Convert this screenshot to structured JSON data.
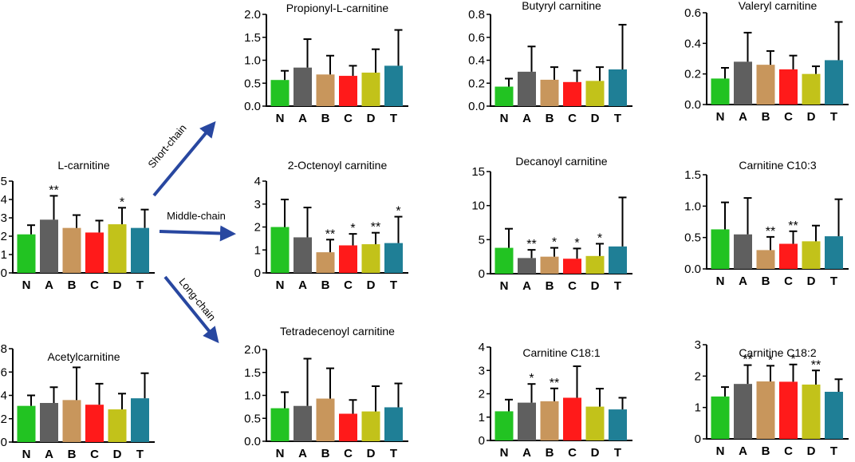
{
  "colors": {
    "N": "#22c322",
    "A": "#5f5f5f",
    "B": "#c8965c",
    "C": "#ff1a1a",
    "D": "#c2c21a",
    "T": "#1f7f96",
    "arrow": "#2847a0"
  },
  "arrows": [
    {
      "label": "Short-chain"
    },
    {
      "label": "Middle-chain"
    },
    {
      "label": "Long-chain"
    }
  ],
  "chart_data": [
    {
      "id": "l-carnitine",
      "type": "bar",
      "title": "L-carnitine",
      "categories": [
        "N",
        "A",
        "B",
        "C",
        "D",
        "T"
      ],
      "values": [
        2.1,
        2.9,
        2.45,
        2.2,
        2.65,
        2.45
      ],
      "errors": [
        0.5,
        1.3,
        0.7,
        0.65,
        0.9,
        1.0
      ],
      "sig": [
        "",
        "**",
        "",
        "",
        "*",
        ""
      ],
      "ylim": [
        0,
        5
      ],
      "yticks": [
        "0",
        "1",
        "2",
        "3",
        "4",
        "5"
      ]
    },
    {
      "id": "acetylcarnitine",
      "type": "bar",
      "title": "Acetylcarnitine",
      "categories": [
        "N",
        "A",
        "B",
        "C",
        "D",
        "T"
      ],
      "values": [
        3.1,
        3.35,
        3.6,
        3.2,
        2.8,
        3.75
      ],
      "errors": [
        0.9,
        1.35,
        2.8,
        1.8,
        1.35,
        2.15
      ],
      "sig": [
        "",
        "",
        "",
        "",
        "",
        ""
      ],
      "ylim": [
        0,
        8
      ],
      "yticks": [
        "0",
        "2",
        "4",
        "6",
        "8"
      ]
    },
    {
      "id": "propionyl",
      "type": "bar",
      "title": "Propionyl-L-carnitine",
      "categories": [
        "N",
        "A",
        "B",
        "C",
        "D",
        "T"
      ],
      "values": [
        0.57,
        0.84,
        0.69,
        0.66,
        0.73,
        0.88
      ],
      "errors": [
        0.2,
        0.62,
        0.41,
        0.22,
        0.51,
        0.78
      ],
      "sig": [
        "",
        "",
        "",
        "",
        "",
        ""
      ],
      "ylim": [
        0,
        2
      ],
      "yticks": [
        "0.0",
        "0.5",
        "1.0",
        "1.5",
        "2.0"
      ]
    },
    {
      "id": "octenoyl",
      "type": "bar",
      "title": "2-Octenoyl carnitine",
      "categories": [
        "N",
        "A",
        "B",
        "C",
        "D",
        "T"
      ],
      "values": [
        2.0,
        1.55,
        0.9,
        1.2,
        1.25,
        1.3
      ],
      "errors": [
        1.2,
        1.3,
        0.55,
        0.5,
        0.5,
        1.15
      ],
      "sig": [
        "",
        "",
        "**",
        "*",
        "**",
        "*"
      ],
      "ylim": [
        0,
        4
      ],
      "yticks": [
        "0",
        "1",
        "2",
        "3",
        "4"
      ]
    },
    {
      "id": "tetradecenoyl",
      "type": "bar",
      "title": "Tetradecenoyl carnitine",
      "categories": [
        "N",
        "A",
        "B",
        "C",
        "D",
        "T"
      ],
      "values": [
        0.72,
        0.77,
        0.93,
        0.6,
        0.65,
        0.74
      ],
      "errors": [
        0.35,
        1.03,
        0.66,
        0.3,
        0.55,
        0.52
      ],
      "sig": [
        "",
        "",
        "",
        "",
        "",
        ""
      ],
      "ylim": [
        0,
        2
      ],
      "yticks": [
        "0.0",
        "0.5",
        "1.0",
        "1.5",
        "2.0"
      ]
    },
    {
      "id": "butyryl",
      "type": "bar",
      "title": "Butyryl carnitine",
      "categories": [
        "N",
        "A",
        "B",
        "C",
        "D",
        "T"
      ],
      "values": [
        0.17,
        0.3,
        0.23,
        0.21,
        0.22,
        0.32
      ],
      "errors": [
        0.07,
        0.22,
        0.11,
        0.1,
        0.12,
        0.39
      ],
      "sig": [
        "",
        "",
        "",
        "",
        "",
        ""
      ],
      "ylim": [
        0,
        0.8
      ],
      "yticks": [
        "0.0",
        "0.2",
        "0.4",
        "0.6",
        "0.8"
      ]
    },
    {
      "id": "decanoyl",
      "type": "bar",
      "title": "Decanoyl carnitine",
      "categories": [
        "N",
        "A",
        "B",
        "C",
        "D",
        "T"
      ],
      "values": [
        3.8,
        2.3,
        2.5,
        2.2,
        2.6,
        4.0
      ],
      "errors": [
        2.8,
        1.2,
        1.3,
        1.5,
        1.8,
        7.2
      ],
      "sig": [
        "",
        "**",
        "*",
        "*",
        "*",
        ""
      ],
      "ylim": [
        0,
        15
      ],
      "yticks": [
        "0",
        "5",
        "10",
        "15"
      ]
    },
    {
      "id": "c18-1",
      "type": "bar",
      "title": "Carnitine C18:1",
      "categories": [
        "N",
        "A",
        "B",
        "C",
        "D",
        "T"
      ],
      "values": [
        1.25,
        1.62,
        1.68,
        1.83,
        1.45,
        1.33
      ],
      "errors": [
        0.5,
        0.8,
        0.55,
        1.35,
        0.77,
        0.5
      ],
      "sig": [
        "",
        "*",
        "**",
        "",
        "",
        ""
      ],
      "ylim": [
        0,
        4
      ],
      "yticks": [
        "0",
        "1",
        "2",
        "3",
        "4"
      ]
    },
    {
      "id": "valeryl",
      "type": "bar",
      "title": "Valeryl carnitine",
      "categories": [
        "N",
        "A",
        "B",
        "C",
        "D",
        "T"
      ],
      "values": [
        0.17,
        0.28,
        0.26,
        0.23,
        0.2,
        0.29
      ],
      "errors": [
        0.07,
        0.19,
        0.09,
        0.09,
        0.05,
        0.25
      ],
      "sig": [
        "",
        "",
        "",
        "",
        "",
        ""
      ],
      "ylim": [
        0,
        0.6
      ],
      "yticks": [
        "0.0",
        "0.2",
        "0.4",
        "0.6"
      ]
    },
    {
      "id": "c10-3",
      "type": "bar",
      "title": "Carnitine C10:3",
      "categories": [
        "N",
        "A",
        "B",
        "C",
        "D",
        "T"
      ],
      "values": [
        0.63,
        0.55,
        0.3,
        0.4,
        0.44,
        0.52
      ],
      "errors": [
        0.43,
        0.58,
        0.21,
        0.2,
        0.25,
        0.59
      ],
      "sig": [
        "",
        "",
        "**",
        "**",
        "",
        ""
      ],
      "ylim": [
        0,
        1.5
      ],
      "yticks": [
        "0.0",
        "0.5",
        "1.0",
        "1.5"
      ]
    },
    {
      "id": "c18-2",
      "type": "bar",
      "title": "Carnitine C18:2",
      "categories": [
        "N",
        "A",
        "B",
        "C",
        "D",
        "T"
      ],
      "values": [
        1.35,
        1.75,
        1.83,
        1.82,
        1.73,
        1.5
      ],
      "errors": [
        0.3,
        0.6,
        0.5,
        0.55,
        0.45,
        0.4
      ],
      "sig": [
        "",
        "**",
        "*",
        "*",
        "**",
        ""
      ],
      "ylim": [
        0,
        3
      ],
      "yticks": [
        "0",
        "1",
        "2",
        "3"
      ]
    }
  ]
}
